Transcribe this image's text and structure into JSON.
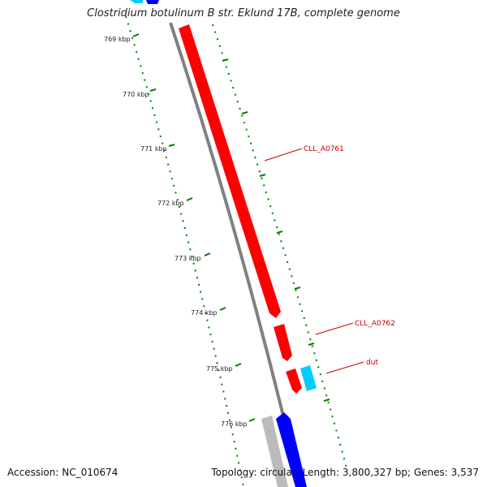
{
  "title": "Clostridium botulinum B str. Eklund 17B, complete genome",
  "footer": {
    "accession": "Accession: NC_010674",
    "summary": "Topology: circular; Length: 3,800,327 bp; Genes: 3,537"
  },
  "ruler": {
    "unit": "kbp",
    "labels": [
      "769 kbp",
      "770 kbp",
      "771 kbp",
      "772 kbp",
      "773 kbp",
      "774 kbp",
      "775 kbp",
      "776 kbp"
    ],
    "tick_color": "#008000"
  },
  "colors": {
    "backbone": "#808080",
    "gene_red": "#ff0000",
    "gene_cyan": "#00ccff",
    "gene_blue": "#0000ff",
    "gene_gray": "#bbbbbb",
    "label_red": "#cc0000"
  },
  "genes": [
    {
      "label": "CLL_A0761"
    },
    {
      "label": "CLL_A0762"
    },
    {
      "label": "dut"
    }
  ]
}
